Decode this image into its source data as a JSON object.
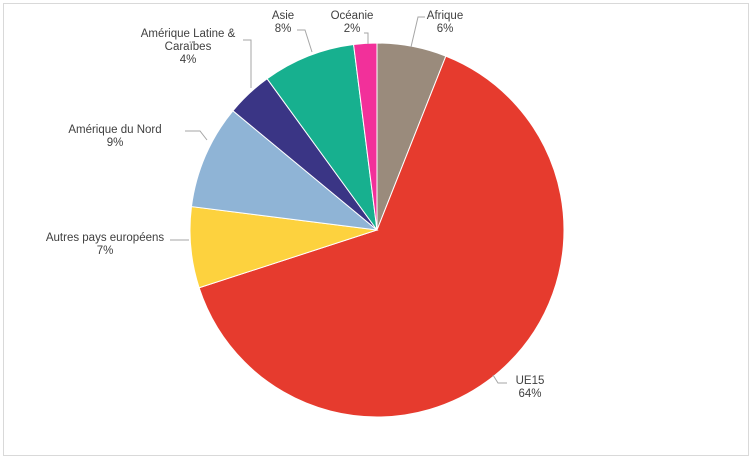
{
  "chart_data": {
    "type": "pie",
    "title": "",
    "start": "top",
    "direction": "clockwise",
    "slices": [
      {
        "label": "Afrique",
        "value": 6,
        "value_label": "6%",
        "color": "#9a8b7c"
      },
      {
        "label": "UE15",
        "value": 64,
        "value_label": "64%",
        "color": "#e63b2e"
      },
      {
        "label": "Autres pays européens",
        "value": 7,
        "value_label": "7%",
        "color": "#fdd23e"
      },
      {
        "label": "Amérique du Nord",
        "value": 9,
        "value_label": "9%",
        "color": "#8fb4d6"
      },
      {
        "label": "Amérique Latine & Caraïbes",
        "value": 4,
        "value_label": "4%",
        "color": "#3a3585"
      },
      {
        "label": "Asie",
        "value": 8,
        "value_label": "8%",
        "color": "#17b08f"
      },
      {
        "label": "Océanie",
        "value": 2,
        "value_label": "2%",
        "color": "#f2309a"
      }
    ],
    "legend": "none"
  }
}
